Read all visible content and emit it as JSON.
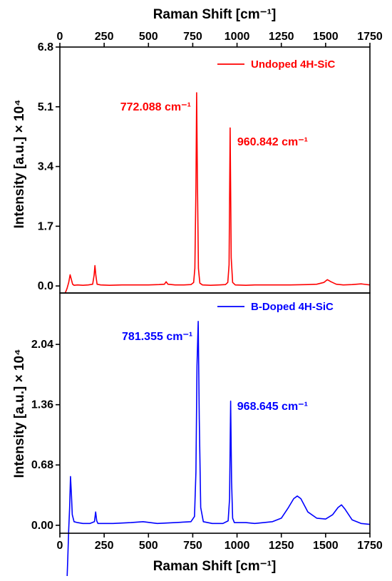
{
  "chart_data": [
    {
      "type": "line",
      "panel": "top",
      "xlabel": "Raman Shift [cm⁻¹]",
      "ylabel": "Intensity [a.u.] × 10⁴",
      "xlim": [
        0,
        1750
      ],
      "ylim": [
        -0.2,
        6.8
      ],
      "x_ticks": [
        "0",
        "250",
        "500",
        "750",
        "1000",
        "1250",
        "1500",
        "1750"
      ],
      "y_ticks": [
        "0.0",
        "1.7",
        "3.4",
        "5.1",
        "6.8"
      ],
      "legend_position": "top-right",
      "series": [
        {
          "name": "Undoped 4H-SiC",
          "color": "#ff0000",
          "x": [
            20,
            30,
            40,
            50,
            58,
            65,
            72,
            80,
            100,
            130,
            160,
            185,
            193,
            198,
            203,
            210,
            230,
            280,
            350,
            420,
            500,
            560,
            590,
            600,
            610,
            650,
            700,
            740,
            755,
            762,
            768,
            772,
            776,
            782,
            790,
            805,
            850,
            900,
            935,
            948,
            955,
            961,
            967,
            975,
            990,
            1050,
            1100,
            1200,
            1300,
            1400,
            1450,
            1490,
            1510,
            1530,
            1560,
            1600,
            1650,
            1700,
            1750
          ],
          "y": [
            -0.35,
            -0.2,
            -0.08,
            0.1,
            0.32,
            0.18,
            0.05,
            0.02,
            0.03,
            0.02,
            0.03,
            0.05,
            0.3,
            0.58,
            0.3,
            0.05,
            0.03,
            0.02,
            0.03,
            0.03,
            0.03,
            0.04,
            0.05,
            0.12,
            0.05,
            0.03,
            0.03,
            0.04,
            0.1,
            0.5,
            2.8,
            5.5,
            3.2,
            0.5,
            0.08,
            0.03,
            0.02,
            0.03,
            0.04,
            0.1,
            0.6,
            4.5,
            0.8,
            0.1,
            0.03,
            0.02,
            0.03,
            0.03,
            0.03,
            0.04,
            0.05,
            0.1,
            0.18,
            0.12,
            0.05,
            0.03,
            0.04,
            0.06,
            0.03
          ]
        }
      ],
      "annotations": [
        {
          "text": "772.088 cm⁻¹",
          "x": 772.088,
          "y": 5.1,
          "color": "#ff0000"
        },
        {
          "text": "960.842 cm⁻¹",
          "x": 960.842,
          "y": 4.1,
          "color": "#ff0000"
        }
      ]
    },
    {
      "type": "line",
      "panel": "bottom",
      "xlabel": "Raman Shift [cm⁻¹]",
      "ylabel": "Intensity [a.u.] × 10⁴",
      "xlim": [
        0,
        1750
      ],
      "ylim": [
        -0.09,
        2.62
      ],
      "x_ticks": [
        "0",
        "250",
        "500",
        "750",
        "1000",
        "1250",
        "1500",
        "1750"
      ],
      "y_ticks": [
        "0.00",
        "0.68",
        "1.36",
        "2.04"
      ],
      "legend_position": "top-right",
      "series": [
        {
          "name": "B-Doped 4H-SiC",
          "color": "#0000ff",
          "x": [
            40,
            45,
            50,
            55,
            60,
            65,
            70,
            80,
            100,
            130,
            170,
            195,
            202,
            208,
            215,
            240,
            300,
            400,
            470,
            550,
            650,
            740,
            760,
            768,
            774,
            781,
            787,
            795,
            810,
            860,
            920,
            950,
            958,
            964,
            969,
            975,
            985,
            1000,
            1050,
            1100,
            1150,
            1200,
            1250,
            1290,
            1320,
            1340,
            1360,
            1400,
            1450,
            1500,
            1540,
            1570,
            1590,
            1610,
            1650,
            1700,
            1750
          ],
          "y": [
            -0.65,
            -0.35,
            -0.05,
            0.2,
            0.55,
            0.35,
            0.12,
            0.04,
            0.03,
            0.02,
            0.02,
            0.04,
            0.15,
            0.05,
            0.02,
            0.02,
            0.02,
            0.03,
            0.04,
            0.02,
            0.03,
            0.04,
            0.1,
            0.6,
            1.8,
            2.3,
            1.2,
            0.2,
            0.04,
            0.02,
            0.02,
            0.05,
            0.3,
            1.4,
            0.5,
            0.08,
            0.03,
            0.03,
            0.03,
            0.02,
            0.03,
            0.04,
            0.08,
            0.2,
            0.3,
            0.33,
            0.3,
            0.15,
            0.08,
            0.07,
            0.12,
            0.2,
            0.23,
            0.18,
            0.06,
            0.02,
            0.01
          ]
        }
      ],
      "annotations": [
        {
          "text": "781.355 cm⁻¹",
          "x": 781.355,
          "y": 2.13,
          "color": "#0000ff"
        },
        {
          "text": "968.645 cm⁻¹",
          "x": 968.645,
          "y": 1.34,
          "color": "#0000ff"
        }
      ]
    }
  ]
}
